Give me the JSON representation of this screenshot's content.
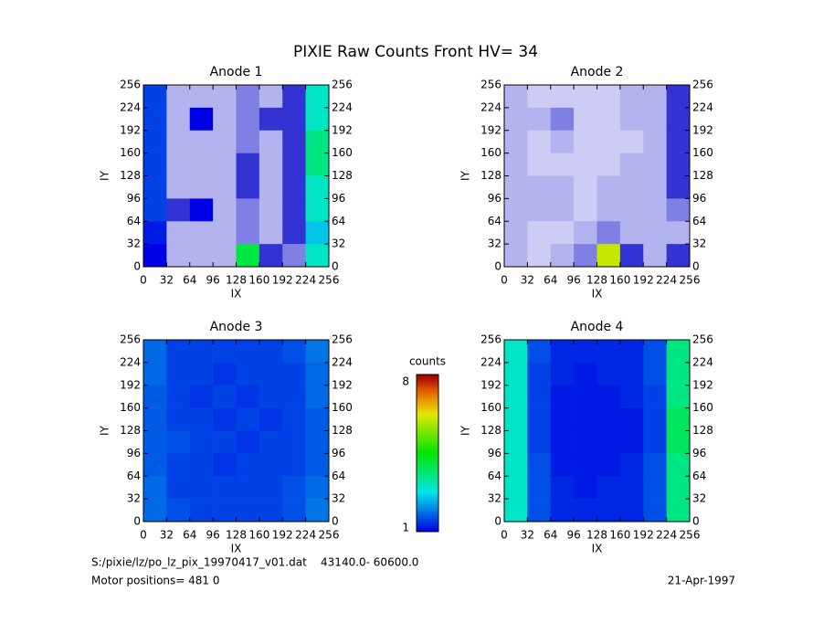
{
  "title": "PIXIE Raw Counts Front HV= 34",
  "chart_data": [
    {
      "type": "heatmap",
      "title": "Anode 1",
      "xlabel": "IX",
      "ylabel": "IY",
      "xlim": [
        0,
        256
      ],
      "ylim": [
        0,
        256
      ],
      "xticks": [
        0,
        32,
        64,
        96,
        128,
        160,
        192,
        224,
        256
      ],
      "yticks": [
        0,
        32,
        64,
        96,
        128,
        160,
        192,
        224,
        256
      ],
      "values": [
        [
          1.5,
          0.3,
          0.3,
          0.3,
          0.5,
          0.3,
          0.8,
          3
        ],
        [
          1.5,
          0.3,
          1,
          0.3,
          0.5,
          0.8,
          0.8,
          3
        ],
        [
          1.5,
          0.3,
          0.3,
          0.3,
          0.5,
          0.3,
          0.8,
          3.5
        ],
        [
          1.5,
          0.3,
          0.3,
          0.3,
          0.8,
          0.3,
          0.8,
          3.5
        ],
        [
          1.5,
          0.3,
          0.3,
          0.3,
          0.8,
          0.3,
          0.8,
          3
        ],
        [
          1.5,
          0.8,
          1,
          0.3,
          0.5,
          0.3,
          0.8,
          3
        ],
        [
          1.2,
          0.3,
          0.3,
          0.3,
          0.5,
          0.3,
          0.8,
          2.5
        ],
        [
          1,
          0.3,
          0.3,
          0.3,
          4,
          0.8,
          0.5,
          3
        ]
      ]
    },
    {
      "type": "heatmap",
      "title": "Anode 2",
      "xlabel": "IX",
      "ylabel": "IY",
      "xlim": [
        0,
        256
      ],
      "ylim": [
        0,
        256
      ],
      "xticks": [
        0,
        32,
        64,
        96,
        128,
        160,
        192,
        224,
        256
      ],
      "yticks": [
        0,
        32,
        64,
        96,
        128,
        160,
        192,
        224,
        256
      ],
      "values": [
        [
          0.3,
          0.2,
          0.2,
          0.2,
          0.2,
          0.3,
          0.3,
          0.8
        ],
        [
          0.3,
          0.3,
          0.5,
          0.2,
          0.2,
          0.3,
          0.3,
          0.8
        ],
        [
          0.3,
          0.2,
          0.3,
          0.2,
          0.2,
          0.2,
          0.3,
          0.8
        ],
        [
          0.3,
          0.2,
          0.2,
          0.2,
          0.2,
          0.3,
          0.3,
          0.8
        ],
        [
          0.3,
          0.3,
          0.3,
          0.2,
          0.3,
          0.3,
          0.3,
          0.8
        ],
        [
          0.3,
          0.3,
          0.3,
          0.2,
          0.3,
          0.3,
          0.3,
          0.5
        ],
        [
          0.3,
          0.2,
          0.2,
          0.3,
          0.5,
          0.3,
          0.3,
          0.3
        ],
        [
          0.3,
          0.2,
          0.3,
          0.5,
          6,
          0.8,
          0.3,
          0.8
        ]
      ]
    },
    {
      "type": "heatmap",
      "title": "Anode 3",
      "xlabel": "IX",
      "ylabel": "IY",
      "xlim": [
        0,
        256
      ],
      "ylim": [
        0,
        256
      ],
      "xticks": [
        0,
        32,
        64,
        96,
        128,
        160,
        192,
        224,
        256
      ],
      "yticks": [
        0,
        32,
        64,
        96,
        128,
        160,
        192,
        224,
        256
      ],
      "values": [
        [
          1.8,
          1.5,
          1.5,
          1.5,
          1.5,
          1.5,
          1.6,
          1.9
        ],
        [
          1.8,
          1.5,
          1.5,
          1.4,
          1.5,
          1.5,
          1.5,
          1.8
        ],
        [
          1.7,
          1.5,
          1.4,
          1.5,
          1.4,
          1.5,
          1.5,
          1.8
        ],
        [
          1.7,
          1.5,
          1.5,
          1.4,
          1.5,
          1.4,
          1.5,
          1.7
        ],
        [
          1.7,
          1.6,
          1.5,
          1.5,
          1.4,
          1.5,
          1.5,
          1.7
        ],
        [
          1.7,
          1.5,
          1.5,
          1.4,
          1.5,
          1.5,
          1.5,
          1.7
        ],
        [
          1.8,
          1.5,
          1.5,
          1.5,
          1.5,
          1.5,
          1.6,
          1.8
        ],
        [
          1.8,
          1.6,
          1.5,
          1.5,
          1.5,
          1.5,
          1.6,
          1.9
        ]
      ]
    },
    {
      "type": "heatmap",
      "title": "Anode 4",
      "xlabel": "IX",
      "ylabel": "IY",
      "xlim": [
        0,
        256
      ],
      "ylim": [
        0,
        256
      ],
      "xticks": [
        0,
        32,
        64,
        96,
        128,
        160,
        192,
        224,
        256
      ],
      "yticks": [
        0,
        32,
        64,
        96,
        128,
        160,
        192,
        224,
        256
      ],
      "values": [
        [
          3,
          1.6,
          1.3,
          1.3,
          1.3,
          1.3,
          1.6,
          3.5
        ],
        [
          3,
          1.5,
          1.3,
          1.2,
          1.3,
          1.3,
          1.6,
          3.5
        ],
        [
          3,
          1.5,
          1.2,
          1.2,
          1.2,
          1.3,
          1.5,
          3.5
        ],
        [
          3,
          1.5,
          1.2,
          1.2,
          1.2,
          1.2,
          1.5,
          3.8
        ],
        [
          3,
          1.5,
          1.2,
          1.2,
          1.2,
          1.2,
          1.5,
          3.8
        ],
        [
          3,
          1.6,
          1.2,
          1.2,
          1.2,
          1.3,
          1.6,
          3.5
        ],
        [
          3,
          1.6,
          1.3,
          1.2,
          1.3,
          1.3,
          1.6,
          3.5
        ],
        [
          3,
          1.6,
          1.3,
          1.3,
          1.3,
          1.3,
          1.6,
          3.5
        ]
      ]
    }
  ],
  "colorbar": {
    "label": "counts",
    "lim": [
      1,
      8
    ],
    "ticks": [
      1,
      8
    ]
  },
  "footer": {
    "file": "S:/pixie/lz/po_lz_pix_19970417_v01.dat    43140.0- 60600.0",
    "motor": "Motor positions= 481 0",
    "date": "21-Apr-1997"
  }
}
